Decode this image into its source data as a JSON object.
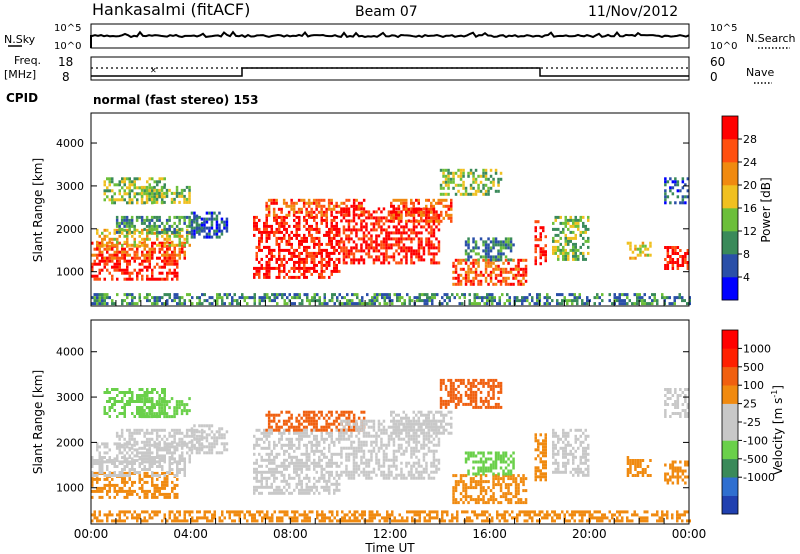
{
  "header": {
    "station": "Hankasalmi (fitACF)",
    "beam": "Beam 07",
    "date": "11/Nov/2012"
  },
  "status_panels": {
    "nsky_label": "N.Sky",
    "nsearch_label": "N.Search",
    "nsky_ticks": [
      "10^5",
      "10^0"
    ],
    "nsearch_ticks": [
      "10^5",
      "10^0"
    ],
    "freq_label_1": "Freq.",
    "freq_label_2": "[MHz]",
    "freq_ticks": [
      "18",
      "8"
    ],
    "nave_label": "Nave",
    "nave_ticks": [
      "60",
      "0"
    ],
    "cpid_label": "CPID",
    "cpid_text": "normal (fast stereo) 153"
  },
  "colors": {
    "power": [
      "#0000ff",
      "#2a4fa8",
      "#3a8a5a",
      "#6cbf3a",
      "#f0c020",
      "#f08a10",
      "#ff5010",
      "#ff0000"
    ],
    "velocity": [
      "#2040b0",
      "#2f6fd0",
      "#3a8a5a",
      "#6ad04a",
      "#c8c8c8",
      "#c8c8c8",
      "#f08a10",
      "#f06010",
      "#ff2000",
      "#ff0000"
    ],
    "ground_scatter": "#c8c8c8"
  },
  "chart_data": [
    {
      "type": "heatmap",
      "name": "power",
      "x_ticks": [
        "00:00",
        "04:00",
        "08:00",
        "12:00",
        "16:00",
        "20:00",
        "00:00"
      ],
      "x_range_hours": [
        0,
        24
      ],
      "y_ticks": [
        "4000",
        "3000",
        "2000",
        "1000"
      ],
      "ylim_km": [
        200,
        4700
      ],
      "ylabel": "Slant Range [km]",
      "colorbar_label": "Power [dB]",
      "colorbar_ticks": [
        "28",
        "24",
        "20",
        "16",
        "12",
        "8",
        "4"
      ],
      "colorbar_range": [
        0,
        32
      ]
    },
    {
      "type": "heatmap",
      "name": "velocity",
      "x_ticks": [
        "00:00",
        "04:00",
        "08:00",
        "12:00",
        "16:00",
        "20:00",
        "00:00"
      ],
      "x_range_hours": [
        0,
        24
      ],
      "xlabel": "Time UT",
      "y_ticks": [
        "4000",
        "3000",
        "2000",
        "1000"
      ],
      "ylim_km": [
        200,
        4700
      ],
      "ylabel": "Slant Range [km]",
      "colorbar_label": "Velocity [m s^-1]",
      "colorbar_ticks": [
        "1000",
        "500",
        "100",
        "25",
        "-25",
        "-100",
        "-500",
        "-1000"
      ]
    }
  ]
}
